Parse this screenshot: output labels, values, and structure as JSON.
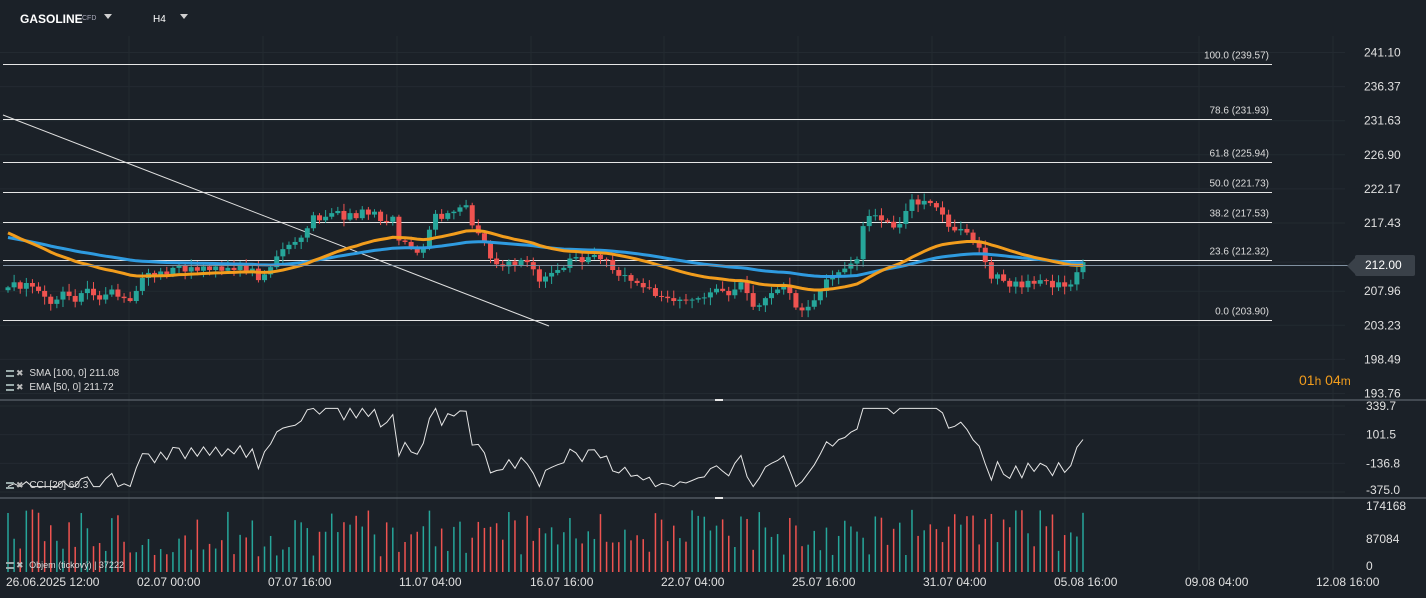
{
  "header": {
    "symbol": "GASOLINE",
    "symbol_suffix": "CFD",
    "timeframe": "H4"
  },
  "indicators": {
    "sma_label": "SMA [100,  0]",
    "sma_value": "211.08",
    "ema_label": "EMA [50, 0]",
    "ema_value": "211.72",
    "cci_label": "CCI [20]",
    "cci_value": "60.3",
    "volume_label": "Objem (tickový)",
    "volume_value": "37222"
  },
  "timer": {
    "hours": "01",
    "h": "h",
    "minutes": "04",
    "m": "m"
  },
  "current_price": "212.00",
  "colors": {
    "up": "#26a69a",
    "down": "#ef5350",
    "sma": "#2f9be0",
    "ema": "#f29d1d",
    "bg": "#1b2128"
  },
  "chart_data": [
    {
      "type": "candlestick",
      "title": "GASOLINE CFD H4",
      "y_ticks": [
        "241.10",
        "236.37",
        "231.63",
        "226.90",
        "222.17",
        "217.43",
        "212.00",
        "207.96",
        "203.23",
        "198.49",
        "193.76"
      ],
      "x_ticks": [
        "26.06.2025  12:00",
        "02.07  00:00",
        "07.07  16:00",
        "11.07  04:00",
        "16.07  16:00",
        "22.07  04:00",
        "25.07  16:00",
        "31.07  04:00",
        "05.08  16:00",
        "09.08  04:00",
        "12.08  16:00"
      ],
      "ylim": [
        193.76,
        241.1
      ],
      "fibonacci": [
        {
          "label": "100.0 (239.57)",
          "value": 239.57
        },
        {
          "label": "78.6 (231.93)",
          "value": 231.93
        },
        {
          "label": "61.8 (225.94)",
          "value": 225.94
        },
        {
          "label": "50.0 (221.73)",
          "value": 221.73
        },
        {
          "label": "38.2 (217.53)",
          "value": 217.53
        },
        {
          "label": "23.6 (212.32)",
          "value": 212.32
        },
        {
          "label": "0.0 (203.90)",
          "value": 203.9
        }
      ],
      "close": [
        208.5,
        209.2,
        208.3,
        209.1,
        208.6,
        208.0,
        207.2,
        206.2,
        206.8,
        207.9,
        207.3,
        206.5,
        207.7,
        208.3,
        207.4,
        206.8,
        207.5,
        208.2,
        207.2,
        207.0,
        206.6,
        208.0,
        209.8,
        210.5,
        210.0,
        210.7,
        210.3,
        211.2,
        211.5,
        210.7,
        211.3,
        210.8,
        211.4,
        210.9,
        211.4,
        210.8,
        211.2,
        210.9,
        211.5,
        210.7,
        211.1,
        209.5,
        210.3,
        211.3,
        212.8,
        213.8,
        214.4,
        214.8,
        215.4,
        216.7,
        218.5,
        217.8,
        218.3,
        218.8,
        219.1,
        217.9,
        218.8,
        218.1,
        219.3,
        218.6,
        219.0,
        217.7,
        217.6,
        218.3,
        215.0,
        214.8,
        213.9,
        213.3,
        214.0,
        216.5,
        218.7,
        218.0,
        218.8,
        219.0,
        219.6,
        219.9,
        217.1,
        216.0,
        214.8,
        212.5,
        211.7,
        211.4,
        212.1,
        211.6,
        212.3,
        212.0,
        211.0,
        209.3,
        210.0,
        210.5,
        210.9,
        211.2,
        212.5,
        212.7,
        212.0,
        212.7,
        213.0,
        212.4,
        212.3,
        210.9,
        210.1,
        210.2,
        209.4,
        209.1,
        208.5,
        208.4,
        207.3,
        207.2,
        207.0,
        206.6,
        206.8,
        206.7,
        206.8,
        207.0,
        207.1,
        207.8,
        208.3,
        208.0,
        207.4,
        208.2,
        209.2,
        207.7,
        205.8,
        206.0,
        207.0,
        207.7,
        208.2,
        208.8,
        207.7,
        205.7,
        205.3,
        205.8,
        206.7,
        208.0,
        209.6,
        209.9,
        210.6,
        211.1,
        211.8,
        212.4,
        217.0,
        218.4,
        218.5,
        217.8,
        217.6,
        216.8,
        217.3,
        219.1,
        220.7,
        220.0,
        220.5,
        220.2,
        219.6,
        218.6,
        216.9,
        216.4,
        216.6,
        216.1,
        215.0,
        214.0,
        212.0,
        209.7,
        210.3,
        209.4,
        208.6,
        209.3,
        208.5,
        209.4,
        209.0,
        209.5,
        209.4,
        208.5,
        209.2,
        208.6,
        208.9,
        210.6,
        212.0
      ],
      "series": [
        {
          "name": "SMA [100,  0]",
          "last": 211.08
        },
        {
          "name": "EMA [50, 0]",
          "last": 211.72
        }
      ]
    },
    {
      "type": "line",
      "title": "CCI [20]",
      "y_ticks": [
        "339.7",
        "101.5",
        "-136.8",
        "-375.0"
      ],
      "ylim": [
        -375.0,
        339.7
      ],
      "last": 60.3
    },
    {
      "type": "bar",
      "title": "Objem (tickový)",
      "y_ticks": [
        "174168",
        "87084",
        "0"
      ],
      "ylim": [
        0,
        174168
      ],
      "last": 37222
    }
  ]
}
